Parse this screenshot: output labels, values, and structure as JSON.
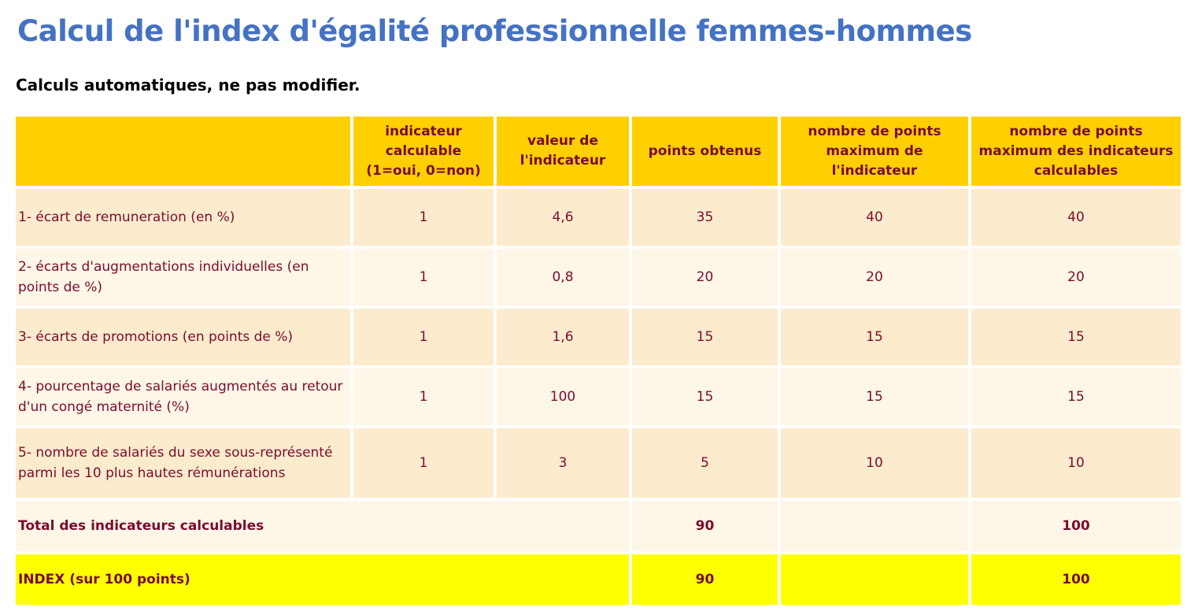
{
  "title": "Calcul de l'index d'égalité professionnelle femmes-hommes",
  "subtitle": "Calculs automatiques, ne pas modifier.",
  "headers": [
    "",
    "indicateur calculable (1=oui, 0=non)",
    "valeur de l'indicateur",
    "points obtenus",
    "nombre de points maximum de l'indicateur",
    "nombre de points maximum des indicateurs calculables"
  ],
  "rows": [
    {
      "label": "1- écart de remuneration (en %)",
      "calculable": "1",
      "valeur": "4,6",
      "points": "35",
      "max_indicateur": "40",
      "max_calculables": "40"
    },
    {
      "label": "2- écarts d'augmentations individuelles (en points de %)",
      "calculable": "1",
      "valeur": "0,8",
      "points": "20",
      "max_indicateur": "20",
      "max_calculables": "20"
    },
    {
      "label": "3- écarts de promotions (en points de %)",
      "calculable": "1",
      "valeur": "1,6",
      "points": "15",
      "max_indicateur": "15",
      "max_calculables": "15"
    },
    {
      "label": "4- pourcentage de salariés augmentés au retour d'un congé maternité (%)",
      "calculable": "1",
      "valeur": "100",
      "points": "15",
      "max_indicateur": "15",
      "max_calculables": "15"
    },
    {
      "label": "5- nombre de salariés du sexe sous-représenté parmi les 10 plus hautes rémunérations",
      "calculable": "1",
      "valeur": "3",
      "points": "5",
      "max_indicateur": "10",
      "max_calculables": "10"
    }
  ],
  "total": {
    "label": "Total des indicateurs calculables",
    "points": "90",
    "max_calculables": "100"
  },
  "index": {
    "label": "INDEX (sur 100 points)",
    "points": "90",
    "max_calculables": "100"
  },
  "colors": {
    "title": "#4472c4",
    "header_bg": "#ffd000",
    "text": "#7a0c2e",
    "row_odd": "#fdebcd",
    "row_even": "#fef6e7",
    "index_bg": "#ffff00"
  }
}
